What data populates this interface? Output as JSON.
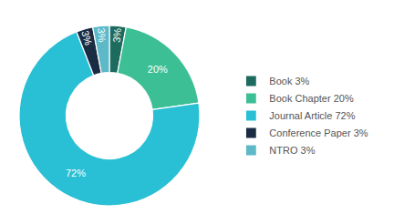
{
  "chart_data": {
    "type": "pie",
    "categories": [
      "Book 3%",
      "Book Chapter 20%",
      "Journal Article 72%",
      "Conference Paper 3%",
      "NTRO 3%"
    ],
    "values": [
      3,
      20,
      72,
      3,
      3
    ],
    "value_labels": [
      "3%",
      "20%",
      "72%",
      "3%",
      "3%"
    ],
    "colors": [
      "#1c6b5e",
      "#3dbf96",
      "#29bfd4",
      "#1a2c44",
      "#5db8c8"
    ],
    "data_labels": true,
    "legend": "right"
  }
}
